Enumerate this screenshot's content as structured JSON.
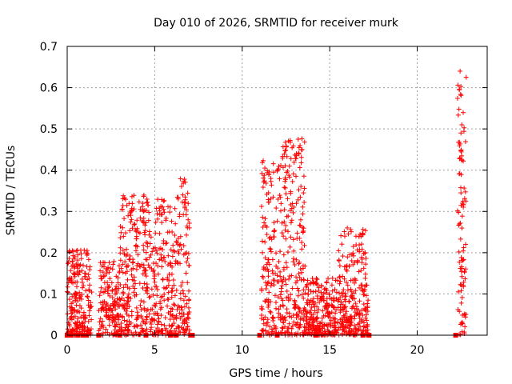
{
  "chart_data": {
    "type": "scatter",
    "title": "Day 010 of 2026, SRMTID for receiver murk",
    "xlabel": "GPS time / hours",
    "ylabel": "SRMTID / TECUs",
    "xlim": [
      0,
      24
    ],
    "ylim": [
      0,
      0.7
    ],
    "xticks": [
      0,
      5,
      10,
      15,
      20
    ],
    "xtick_labels": [
      "0",
      "5",
      "10",
      "15",
      "20"
    ],
    "yticks": [
      0,
      0.1,
      0.2,
      0.3,
      0.4,
      0.5,
      0.6,
      0.7
    ],
    "ytick_labels": [
      "0",
      "0.1",
      "0.2",
      "0.3",
      "0.4",
      "0.5",
      "0.6",
      "0.7"
    ],
    "grid": true,
    "marker": "plus",
    "color": "#ff0000",
    "series": [
      {
        "name": "SRMTID",
        "clusters": [
          {
            "x_range": [
              0.0,
              1.4
            ],
            "y_range": [
              0.0,
              0.21
            ],
            "count": 220
          },
          {
            "x_range": [
              1.8,
              3.0
            ],
            "y_range": [
              0.0,
              0.18
            ],
            "count": 160
          },
          {
            "x_range": [
              3.0,
              4.5
            ],
            "y_range": [
              0.0,
              0.34
            ],
            "count": 230
          },
          {
            "x_range": [
              4.5,
              6.2
            ],
            "y_range": [
              0.0,
              0.33
            ],
            "count": 230
          },
          {
            "x_range": [
              6.2,
              7.0
            ],
            "y_range": [
              0.0,
              0.38
            ],
            "count": 120
          },
          {
            "x_range": [
              11.1,
              12.3
            ],
            "y_range": [
              0.0,
              0.42
            ],
            "count": 180
          },
          {
            "x_range": [
              12.3,
              13.6
            ],
            "y_range": [
              0.0,
              0.48
            ],
            "count": 220
          },
          {
            "x_range": [
              13.6,
              15.5
            ],
            "y_range": [
              0.0,
              0.14
            ],
            "count": 260
          },
          {
            "x_range": [
              15.5,
              17.2
            ],
            "y_range": [
              0.0,
              0.26
            ],
            "count": 260
          },
          {
            "x_range": [
              22.3,
              22.8
            ],
            "y_range": [
              0.0,
              0.64
            ],
            "count": 90
          }
        ],
        "points": [
          [
            22.45,
            0.64
          ],
          [
            22.4,
            0.595
          ],
          [
            22.55,
            0.51
          ],
          [
            22.5,
            0.49
          ],
          [
            22.45,
            0.43
          ],
          [
            22.55,
            0.425
          ],
          [
            22.5,
            0.345
          ],
          [
            11.2,
            0.423
          ],
          [
            13.2,
            0.475
          ],
          [
            13.25,
            0.455
          ],
          [
            13.1,
            0.44
          ],
          [
            6.7,
            0.378
          ],
          [
            6.6,
            0.34
          ],
          [
            3.7,
            0.336
          ],
          [
            5.5,
            0.325
          ],
          [
            0.3,
            0.205
          ],
          [
            16.2,
            0.256
          ],
          [
            16.5,
            0.24
          ],
          [
            1.9,
            0.176
          ]
        ]
      },
      {
        "name": "zero-values",
        "marker": "square",
        "points": [
          [
            0.0,
            0.0
          ],
          [
            0.2,
            0.0
          ],
          [
            0.6,
            0.0
          ],
          [
            0.9,
            0.0
          ],
          [
            1.1,
            0.0
          ],
          [
            1.8,
            0.0
          ],
          [
            3.0,
            0.0
          ],
          [
            4.5,
            0.0
          ],
          [
            5.9,
            0.0
          ],
          [
            6.2,
            0.0
          ],
          [
            7.05,
            0.0
          ],
          [
            7.15,
            0.0
          ],
          [
            11.0,
            0.0
          ],
          [
            12.0,
            0.0
          ],
          [
            14.2,
            0.0
          ],
          [
            16.9,
            0.0
          ],
          [
            17.25,
            0.0
          ],
          [
            22.2,
            0.0
          ]
        ]
      }
    ]
  }
}
